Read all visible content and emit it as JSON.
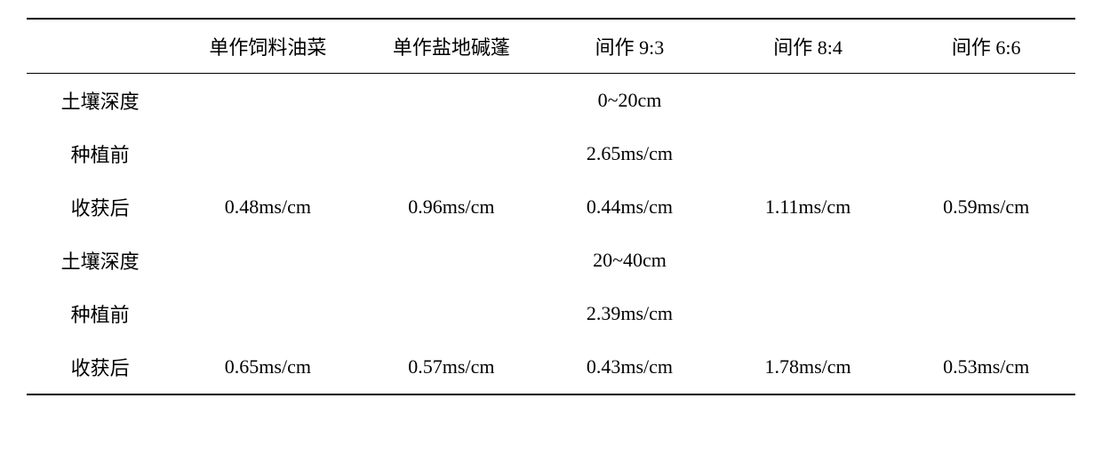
{
  "table": {
    "type": "table",
    "background_color": "#ffffff",
    "border_color": "#000000",
    "border_top_width": 2,
    "border_header_width": 1.5,
    "border_bottom_width": 2,
    "font_size_pt": 16,
    "row_label_font": "KaiTi",
    "value_font": "Times New Roman",
    "columns": [
      {
        "key": "label",
        "header": "",
        "width_pct": 14,
        "align": "center"
      },
      {
        "key": "mono_rape",
        "header": "单作饲料油菜",
        "width_pct": 18,
        "align": "center"
      },
      {
        "key": "mono_suaeda",
        "header": "单作盐地碱蓬",
        "width_pct": 17,
        "align": "center"
      },
      {
        "key": "inter_9_3",
        "header": "间作 9:3",
        "width_pct": 17,
        "align": "center"
      },
      {
        "key": "inter_8_4",
        "header": "间作 8:4",
        "width_pct": 17,
        "align": "center"
      },
      {
        "key": "inter_6_6",
        "header": "间作 6:6",
        "width_pct": 17,
        "align": "center"
      }
    ],
    "rows": [
      {
        "label": "土壤深度",
        "span_value": "0~20cm",
        "span_col_index": 3
      },
      {
        "label": "种植前",
        "span_value": "2.65ms/cm",
        "span_col_index": 3
      },
      {
        "label": "收获后",
        "cells": [
          "0.48ms/cm",
          "0.96ms/cm",
          "0.44ms/cm",
          "1.11ms/cm",
          "0.59ms/cm"
        ]
      },
      {
        "label": "土壤深度",
        "span_value": "20~40cm",
        "span_col_index": 3
      },
      {
        "label": "种植前",
        "span_value": "2.39ms/cm",
        "span_col_index": 3
      },
      {
        "label": "收获后",
        "cells": [
          "0.65ms/cm",
          "0.57ms/cm",
          "0.43ms/cm",
          "1.78ms/cm",
          "0.53ms/cm"
        ]
      }
    ]
  }
}
